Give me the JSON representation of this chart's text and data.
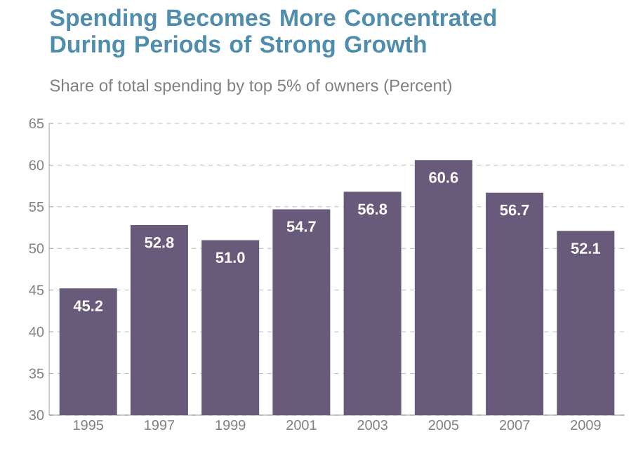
{
  "chart_data": {
    "type": "bar",
    "title": "Spending Becomes More Concentrated\nDuring Periods of Strong Growth",
    "subtitle": "Share of total spending by top 5% of owners (Percent)",
    "categories": [
      "1995",
      "1997",
      "1999",
      "2001",
      "2003",
      "2005",
      "2007",
      "2009"
    ],
    "values": [
      45.2,
      52.8,
      51.0,
      54.7,
      56.8,
      60.6,
      56.7,
      52.1
    ],
    "value_labels": [
      "45.2",
      "52.8",
      "51.0",
      "54.7",
      "56.8",
      "60.6",
      "56.7",
      "52.1"
    ],
    "color": "#675a7a",
    "ylim": [
      30,
      65
    ],
    "yticks": [
      30,
      35,
      40,
      45,
      50,
      55,
      60,
      65
    ],
    "grid": "y"
  }
}
